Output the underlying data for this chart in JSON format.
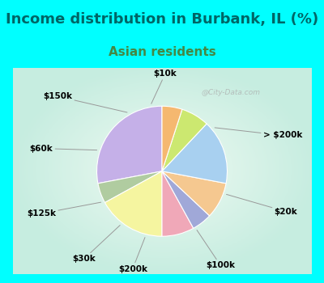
{
  "title": "Income distribution in Burbank, IL (%)",
  "subtitle": "Asian residents",
  "title_fontsize": 13,
  "subtitle_fontsize": 11,
  "title_color": "#006666",
  "subtitle_color": "#448844",
  "background_cyan": "#00ffff",
  "background_chart": "#e0f5ee",
  "labels": [
    "> $200k",
    "$20k",
    "$100k",
    "$200k",
    "$30k",
    "$125k",
    "$60k",
    "$150k",
    "$10k"
  ],
  "values": [
    28,
    5,
    17,
    8,
    5,
    9,
    16,
    7,
    5
  ],
  "colors": [
    "#c5b0e8",
    "#b0cca0",
    "#f5f5a0",
    "#f0a8b8",
    "#a0a8d8",
    "#f5c890",
    "#a8d0f0",
    "#cce870",
    "#f5b870"
  ],
  "startangle": 90,
  "watermark": "@City-Data.com"
}
